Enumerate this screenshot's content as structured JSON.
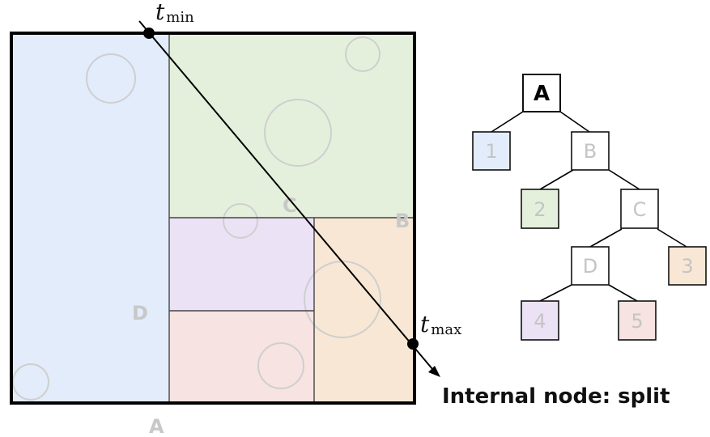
{
  "split_labels": {
    "a": "A",
    "b": "B",
    "c": "C",
    "d": "D"
  },
  "ray": {
    "t_min_var": "t",
    "t_min_sub": "min",
    "t_max_var": "t",
    "t_max_sub": "max"
  },
  "tree": {
    "nodes": {
      "A": {
        "label": "A"
      },
      "n1": {
        "label": "1"
      },
      "B": {
        "label": "B"
      },
      "n2": {
        "label": "2"
      },
      "C": {
        "label": "C"
      },
      "D": {
        "label": "D"
      },
      "n3": {
        "label": "3"
      },
      "n4": {
        "label": "4"
      },
      "n5": {
        "label": "5"
      }
    }
  },
  "caption": "Internal node: split",
  "colors": {
    "region_1": "#e3ecfa",
    "region_2": "#e5f0dc",
    "region_3": "#f8e7d4",
    "region_4": "#ebe2f6",
    "region_5": "#f7e3e1",
    "outline": "#000000",
    "faint_circle": "#cfcfcf",
    "label_gray": "#c6c6c6"
  }
}
